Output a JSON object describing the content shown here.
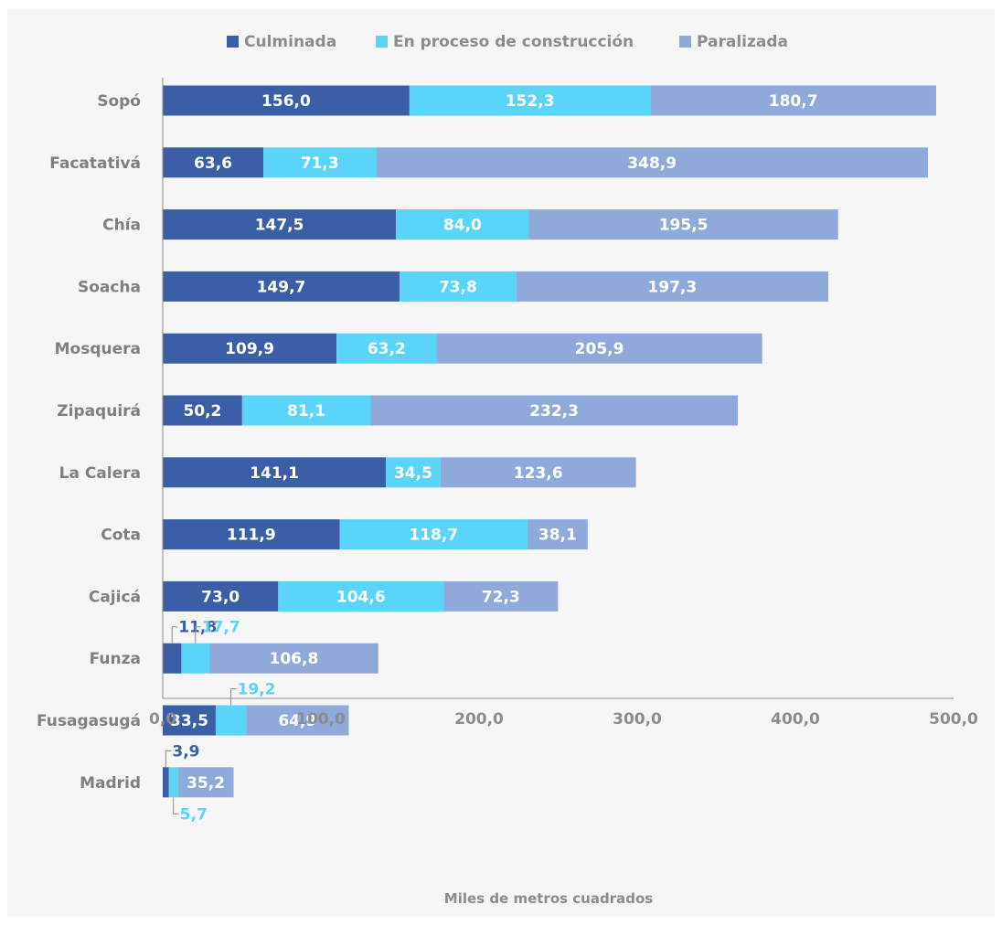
{
  "chart_data": {
    "type": "bar",
    "orientation": "horizontal",
    "stacked": true,
    "categories": [
      "Sopó",
      "Facatativá",
      "Chía",
      "Soacha",
      "Mosquera",
      "Zipaquirá",
      "La Calera",
      "Cota",
      "Cajicá",
      "Funza",
      "Fusagasugá",
      "Madrid"
    ],
    "series": [
      {
        "name": "Culminada",
        "color": "#3a5fa6",
        "values": [
          156.0,
          63.6,
          147.5,
          149.7,
          109.9,
          50.2,
          141.1,
          111.9,
          73.0,
          11.8,
          33.5,
          3.9
        ],
        "labels": [
          "156,0",
          "63,6",
          "147,5",
          "149,7",
          "109,9",
          "50,2",
          "141,1",
          "111,9",
          "73,0",
          "11,8",
          "33,5",
          "3,9"
        ]
      },
      {
        "name": "En proceso de construcción",
        "color": "#5bd4fa",
        "values": [
          152.3,
          71.3,
          84.0,
          73.8,
          63.2,
          81.1,
          34.5,
          118.7,
          104.6,
          17.7,
          19.2,
          5.7
        ],
        "labels": [
          "152,3",
          "71,3",
          "84,0",
          "73,8",
          "63,2",
          "81,1",
          "34,5",
          "118,7",
          "104,6",
          "17,7",
          "19,2",
          "5,7"
        ]
      },
      {
        "name": "Paralizada",
        "color": "#8fa9db",
        "values": [
          180.7,
          348.9,
          195.5,
          197.3,
          205.9,
          232.3,
          123.6,
          38.1,
          72.3,
          106.8,
          64.9,
          35.2
        ],
        "labels": [
          "180,7",
          "348,9",
          "195,5",
          "197,3",
          "205,9",
          "232,3",
          "123,6",
          "38,1",
          "72,3",
          "106,8",
          "64,9",
          "35,2"
        ]
      }
    ],
    "xlabel": "Miles de metros cuadrados",
    "xlim": [
      0,
      500
    ],
    "xticks": [
      0,
      100,
      200,
      300,
      400,
      500
    ],
    "xtick_labels": [
      "0,0",
      "100,0",
      "200,0",
      "300,0",
      "400,0",
      "500,0"
    ],
    "legend_position": "top-center",
    "grid": false
  }
}
